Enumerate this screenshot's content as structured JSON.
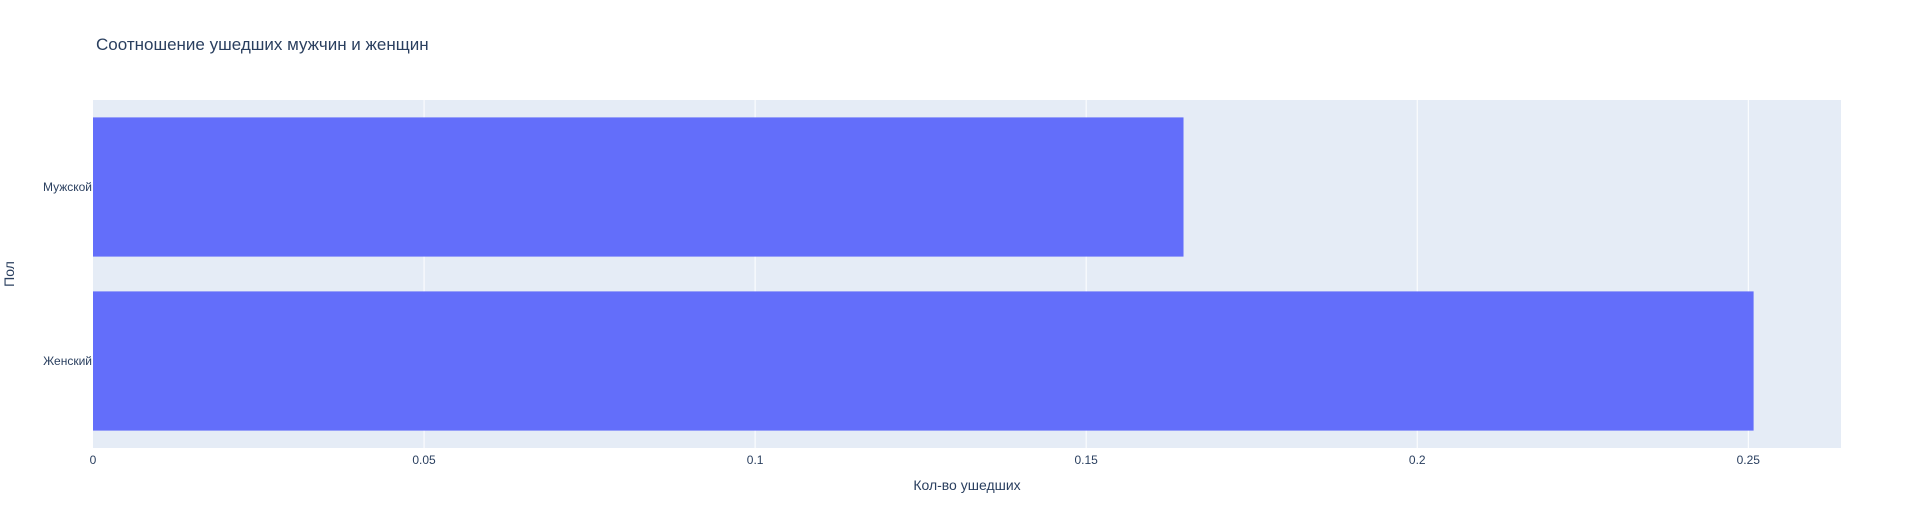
{
  "chart_data": {
    "type": "bar",
    "orientation": "horizontal",
    "title": "Соотношение ушедших мужчин и женщин",
    "xlabel": "Кол-во ушедших",
    "ylabel": "Пол",
    "categories": [
      "Женский",
      "Мужской"
    ],
    "values": [
      0.2508,
      0.1647
    ],
    "xlim": [
      0,
      0.264
    ],
    "xticks": [
      0,
      0.05,
      0.1,
      0.15,
      0.2,
      0.25
    ],
    "xtick_labels": [
      "0",
      "0.05",
      "0.1",
      "0.15",
      "0.2",
      "0.25"
    ],
    "grid": true,
    "colors": {
      "bar": "#636efa",
      "plot_bg": "#e5ecf6",
      "grid": "#ffffff",
      "text": "#2a3f5f"
    }
  }
}
